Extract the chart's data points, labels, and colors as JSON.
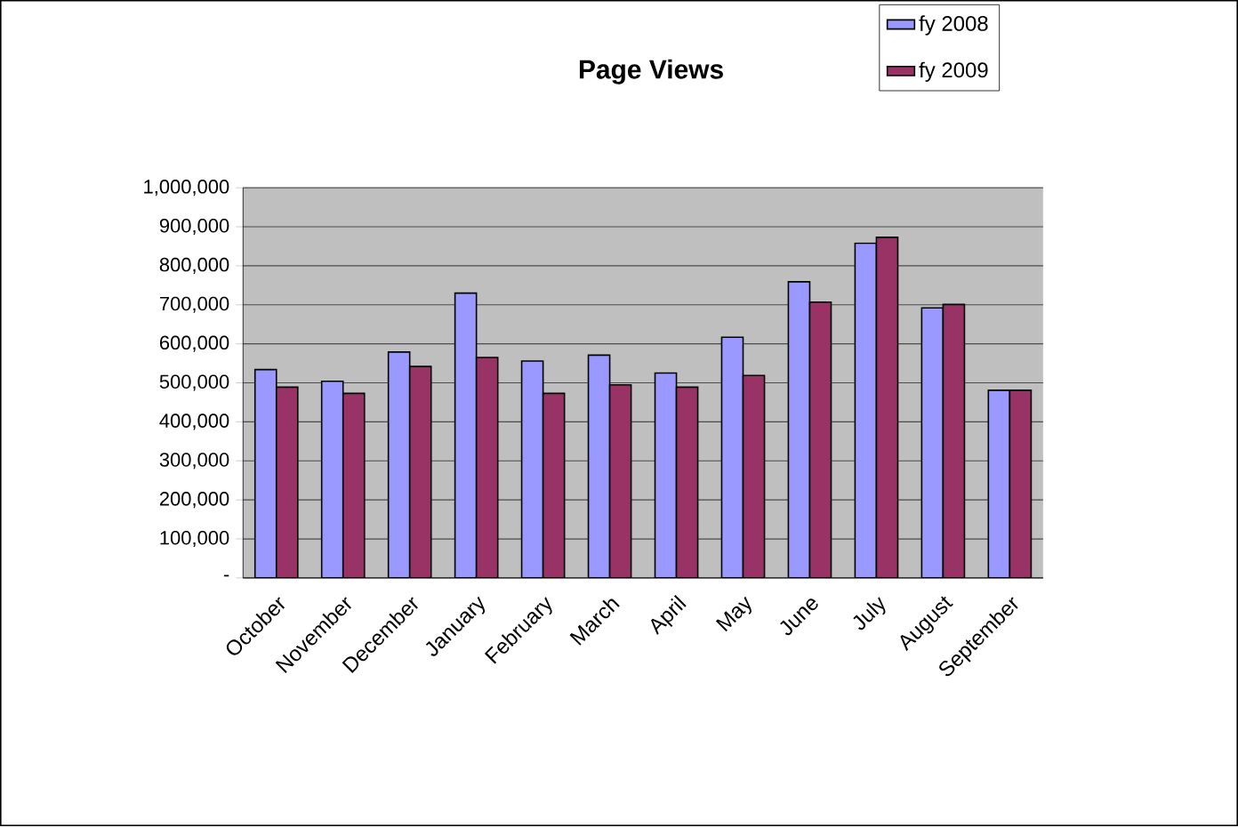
{
  "chart_data": {
    "type": "bar",
    "title": "Page Views",
    "categories": [
      "October",
      "November",
      "December",
      "January",
      "February",
      "March",
      "April",
      "May",
      "June",
      "July",
      "August",
      "September"
    ],
    "series": [
      {
        "name": "fy 2008",
        "color": "#9999ff",
        "values": [
          534000,
          504000,
          579000,
          730000,
          556000,
          571000,
          525000,
          617000,
          759000,
          858000,
          692000,
          481000
        ]
      },
      {
        "name": "fy 2009",
        "color": "#993366",
        "values": [
          489000,
          473000,
          542000,
          565000,
          473000,
          495000,
          489000,
          519000,
          707000,
          873000,
          701000,
          481000
        ]
      }
    ],
    "ylim": [
      0,
      1000000
    ],
    "yticks": [
      {
        "value": 0,
        "label": "-"
      },
      {
        "value": 100000,
        "label": "100,000"
      },
      {
        "value": 200000,
        "label": "200,000"
      },
      {
        "value": 300000,
        "label": "300,000"
      },
      {
        "value": 400000,
        "label": "400,000"
      },
      {
        "value": 500000,
        "label": "500,000"
      },
      {
        "value": 600000,
        "label": "600,000"
      },
      {
        "value": 700000,
        "label": "700,000"
      },
      {
        "value": 800000,
        "label": "800,000"
      },
      {
        "value": 900000,
        "label": "900,000"
      },
      {
        "value": 1000000,
        "label": "1,000,000"
      }
    ],
    "grid": "y",
    "legend": "top right"
  }
}
